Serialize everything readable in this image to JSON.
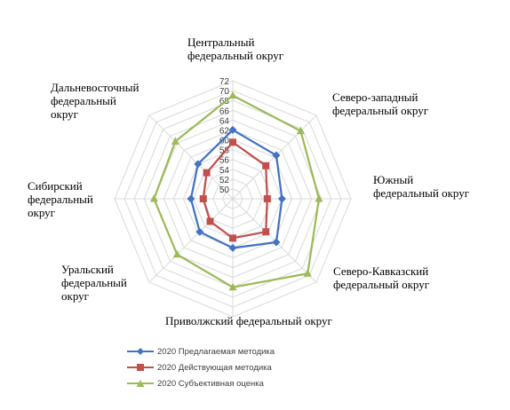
{
  "chart_data": {
    "type": "radar",
    "categories": [
      "Центральный\nфедеральный округ",
      "Северо-западный\nфедеральный округ",
      "Южный\nфедеральный округ",
      "Северо-Кавказский\nфедеральный округ",
      "Приволжский федеральный округ",
      "Уральский\nфедеральный\nокруг",
      "Сибирский\nфедеральный\nокруг",
      "Дальневосточный\nфедеральный\nокруг"
    ],
    "r_ticks": [
      50,
      52,
      54,
      56,
      58,
      60,
      62,
      64,
      66,
      68,
      70,
      72
    ],
    "rlim": [
      48,
      72
    ],
    "series": [
      {
        "name": "2020 Предлагаемая  методика",
        "color": "#4472C4",
        "marker": "diamond",
        "values": [
          62,
          60.5,
          58,
          60.5,
          58,
          57.5,
          56.5,
          58
        ]
      },
      {
        "name": "2020 Действующая  методика",
        "color": "#C0504D",
        "marker": "square",
        "values": [
          59.5,
          57.5,
          55,
          57.5,
          56,
          54.5,
          54,
          55.5
        ]
      },
      {
        "name": "2020 Субъективная  оценка",
        "color": "#9BBB59",
        "marker": "triangle",
        "values": [
          69,
          67.5,
          65.5,
          69.5,
          66,
          64,
          64,
          64.5
        ]
      }
    ],
    "grid": true,
    "legend_position": "bottom-left"
  }
}
